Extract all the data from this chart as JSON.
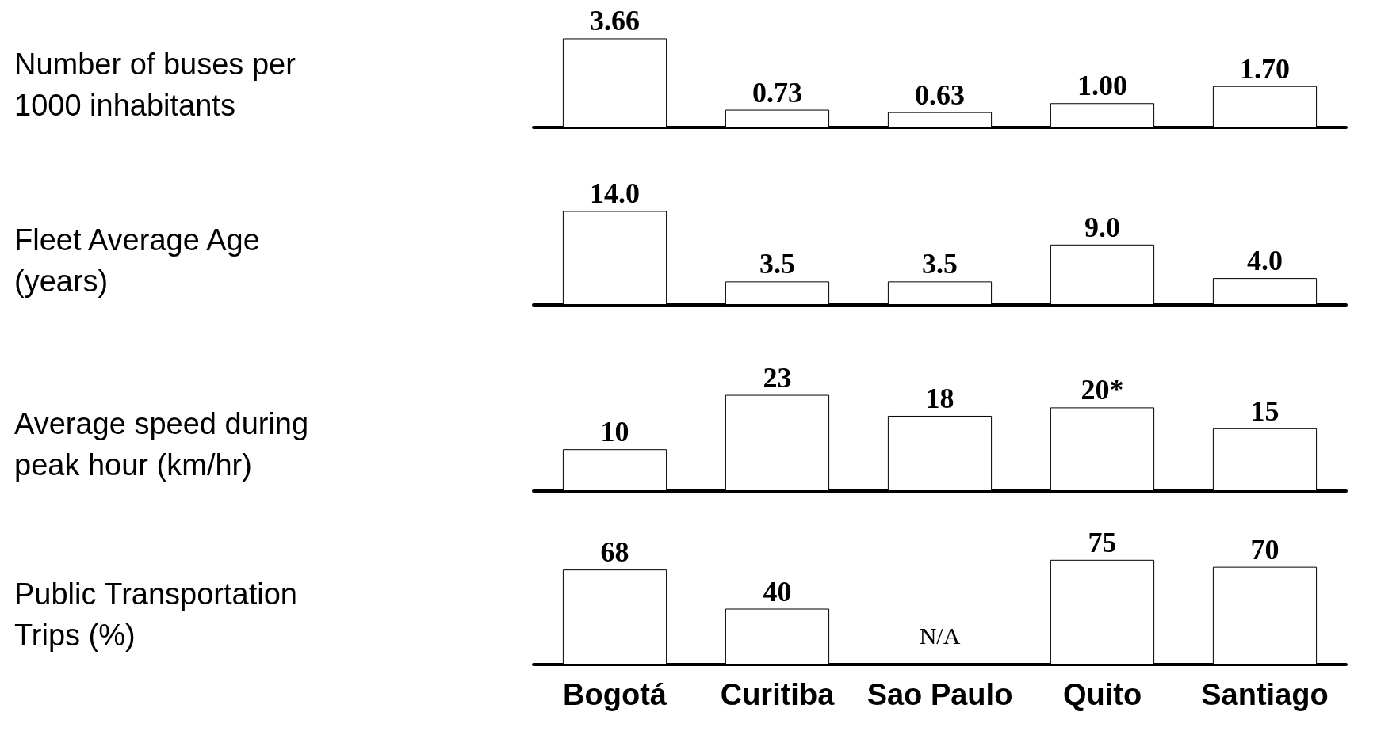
{
  "chart_data": [
    {
      "type": "bar",
      "ylabel": "Number of buses per 1000 inhabitants",
      "categories": [
        "Bogotá",
        "Curitiba",
        "Sao Paulo",
        "Quito",
        "Santiago"
      ],
      "values": [
        3.66,
        0.73,
        0.63,
        1.0,
        1.7
      ],
      "value_labels": [
        "3.66",
        "0.73",
        "0.63",
        "1.00",
        "1.70"
      ],
      "color": "#ffffff",
      "tick_labels": false
    },
    {
      "type": "bar",
      "ylabel": "Fleet Average Age (years)",
      "categories": [
        "Bogotá",
        "Curitiba",
        "Sao Paulo",
        "Quito",
        "Santiago"
      ],
      "values": [
        14.0,
        3.5,
        3.5,
        9.0,
        4.0
      ],
      "value_labels": [
        "14.0",
        "3.5",
        "3.5",
        "9.0",
        "4.0"
      ],
      "color": "#ffffff",
      "tick_labels": false
    },
    {
      "type": "bar",
      "ylabel": "Average speed during peak hour (km/hr)",
      "categories": [
        "Bogotá",
        "Curitiba",
        "Sao Paulo",
        "Quito",
        "Santiago"
      ],
      "values": [
        10,
        23,
        18,
        20,
        15
      ],
      "value_labels": [
        "10",
        "23",
        "18",
        "20*",
        "15"
      ],
      "color": "#ffffff",
      "tick_labels": false
    },
    {
      "type": "bar",
      "ylabel": "Public Transportation Trips (%)",
      "categories": [
        "Bogotá",
        "Curitiba",
        "Sao Paulo",
        "Quito",
        "Santiago"
      ],
      "values": [
        68,
        40,
        null,
        75,
        70
      ],
      "value_labels": [
        "68",
        "40",
        "N/A",
        "75",
        "70"
      ],
      "color": "#ffffff",
      "tick_labels": "x"
    }
  ]
}
